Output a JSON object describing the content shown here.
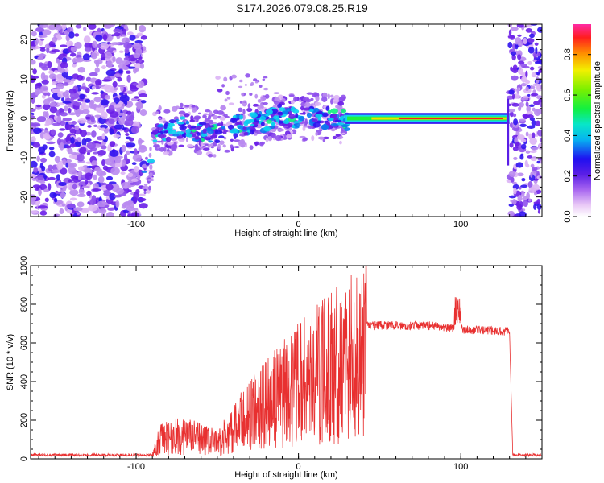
{
  "title": "S174.2026.079.08.25.R19",
  "chart_data": [
    {
      "type": "heatmap",
      "xlabel": "Height of straight line (km)",
      "ylabel": "Frequency (Hz)",
      "xlim": [
        -165,
        150
      ],
      "ylim": [
        -25,
        24
      ],
      "xticks": [
        -100,
        0,
        100
      ],
      "xtick_labels": [
        "-100",
        "0",
        "100"
      ],
      "yticks": [
        -20,
        -10,
        0,
        10,
        20
      ],
      "ytick_labels": [
        "-20",
        "-10",
        "0",
        "10",
        "20"
      ],
      "colorbar": {
        "label": "Normalized spectral amplitude",
        "range": [
          0,
          0.95
        ],
        "ticks": [
          0.0,
          0.2,
          0.4,
          0.6,
          0.8
        ],
        "tick_labels": [
          "0.0",
          "0.2",
          "0.4",
          "0.6",
          "0.8"
        ]
      },
      "signal_trace": [
        {
          "x": -98,
          "freq": -17.5
        },
        {
          "x": -92,
          "freq": -13
        },
        {
          "x": -88,
          "freq": -3
        },
        {
          "x": -80,
          "freq": -3
        },
        {
          "x": -70,
          "freq": -2
        },
        {
          "x": -60,
          "freq": -3.5
        },
        {
          "x": -50,
          "freq": -4
        },
        {
          "x": -40,
          "freq": -2
        },
        {
          "x": -30,
          "freq": -1.5
        },
        {
          "x": -20,
          "freq": -0.5
        },
        {
          "x": -10,
          "freq": 1
        },
        {
          "x": 0,
          "freq": 0
        },
        {
          "x": 10,
          "freq": 0.5
        },
        {
          "x": 20,
          "freq": 0
        },
        {
          "x": 30,
          "freq": -0.5
        },
        {
          "x": 60,
          "freq": 0
        },
        {
          "x": 100,
          "freq": 0
        },
        {
          "x": 129,
          "freq": 0
        }
      ]
    },
    {
      "type": "line",
      "xlabel": "Height of straight line (km)",
      "ylabel": "SNR (10 * v/v)",
      "xlim": [
        -165,
        150
      ],
      "ylim": [
        0,
        1000
      ],
      "xticks": [
        -100,
        0,
        100
      ],
      "xtick_labels": [
        "-100",
        "0",
        "100"
      ],
      "yticks": [
        0,
        200,
        400,
        600,
        800,
        1000
      ],
      "ytick_labels": [
        "0",
        "200",
        "400",
        "600",
        "800",
        "1000"
      ],
      "color": "#e83030",
      "envelope": [
        {
          "x": -165,
          "snr": 20
        },
        {
          "x": -90,
          "snr": 20
        },
        {
          "x": -85,
          "snr": 100
        },
        {
          "x": -70,
          "snr": 120
        },
        {
          "x": -50,
          "snr": 80
        },
        {
          "x": -40,
          "snr": 150
        },
        {
          "x": -30,
          "snr": 230
        },
        {
          "x": -20,
          "snr": 280
        },
        {
          "x": -10,
          "snr": 330
        },
        {
          "x": 0,
          "snr": 380
        },
        {
          "x": 10,
          "snr": 430
        },
        {
          "x": 20,
          "snr": 470
        },
        {
          "x": 30,
          "snr": 520
        },
        {
          "x": 40,
          "snr": 560
        },
        {
          "x": 42,
          "snr": 690
        },
        {
          "x": 80,
          "snr": 690
        },
        {
          "x": 100,
          "snr": 670
        },
        {
          "x": 130,
          "snr": 660
        },
        {
          "x": 132,
          "snr": 20
        },
        {
          "x": 150,
          "snr": 20
        }
      ]
    }
  ]
}
